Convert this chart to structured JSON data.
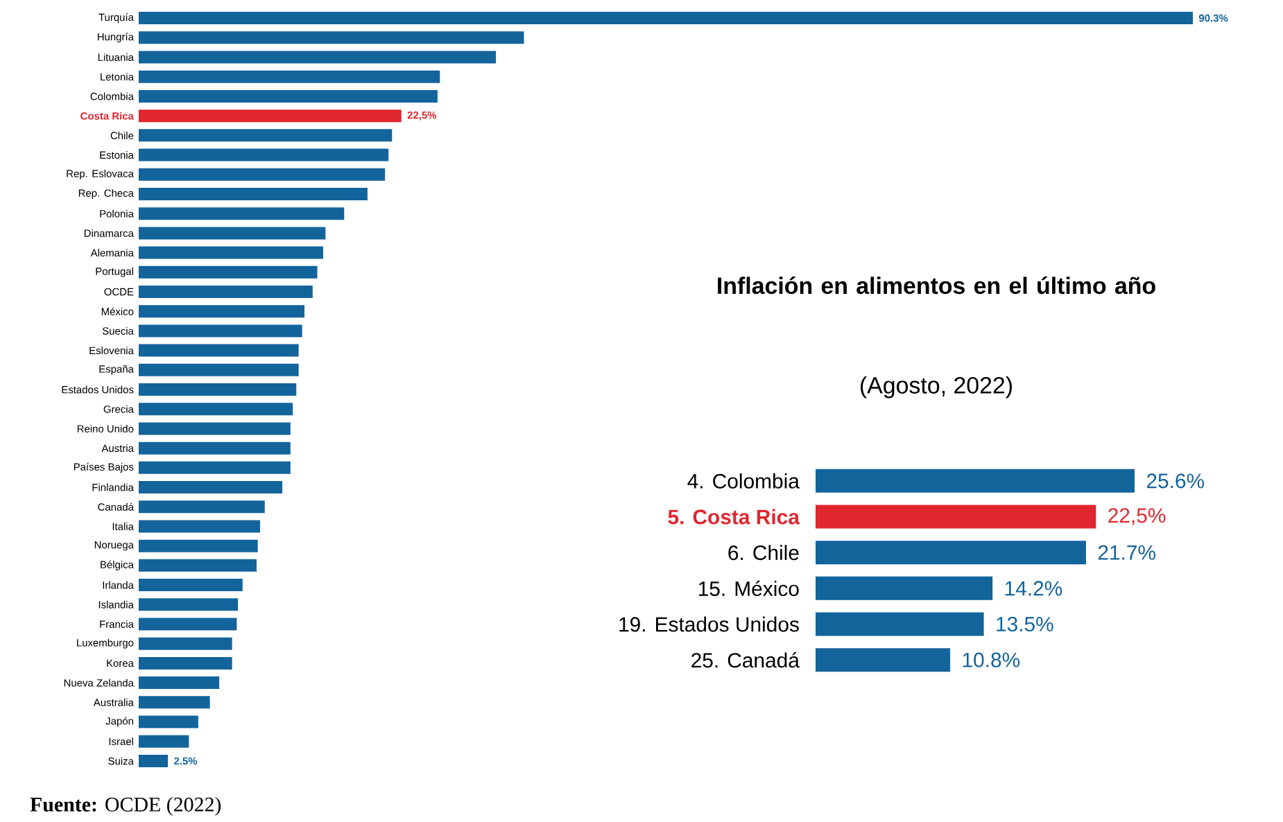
{
  "chart_data": [
    {
      "type": "bar",
      "orientation": "horizontal",
      "categories": [
        "Turquía",
        "Hungría",
        "Lituania",
        "Letonia",
        "Colombia",
        "Costa Rica",
        "Chile",
        "Estonia",
        "Rep. Eslovaca",
        "Rep. Checa",
        "Polonia",
        "Dinamarca",
        "Alemania",
        "Portugal",
        "OCDE",
        "México",
        "Suecia",
        "Eslovenia",
        "España",
        "Estados Unidos",
        "Grecia",
        "Reino Unido",
        "Austria",
        "Países Bajos",
        "Finlandia",
        "Canadá",
        "Italia",
        "Noruega",
        "Bélgica",
        "Irlanda",
        "Islandia",
        "Francia",
        "Luxemburgo",
        "Korea",
        "Nueva Zelanda",
        "Australia",
        "Japón",
        "Israel",
        "Suiza"
      ],
      "values": [
        90.3,
        33.0,
        30.6,
        25.8,
        25.6,
        22.5,
        21.7,
        21.4,
        21.1,
        19.6,
        17.6,
        16.0,
        15.8,
        15.3,
        14.9,
        14.2,
        14.0,
        13.7,
        13.7,
        13.5,
        13.2,
        13.0,
        13.0,
        13.0,
        12.3,
        10.8,
        10.4,
        10.2,
        10.1,
        8.9,
        8.5,
        8.4,
        8.0,
        8.0,
        6.9,
        6.1,
        5.1,
        4.3,
        2.5
      ],
      "value_labels": [
        "90.3%",
        null,
        null,
        null,
        null,
        "22,5%",
        null,
        null,
        null,
        null,
        null,
        null,
        null,
        null,
        null,
        null,
        null,
        null,
        null,
        null,
        null,
        null,
        null,
        null,
        null,
        null,
        null,
        null,
        null,
        null,
        null,
        null,
        null,
        null,
        null,
        null,
        null,
        null,
        "2.5%"
      ],
      "colors": [
        "#14649c",
        "#14649c",
        "#14649c",
        "#14649c",
        "#14649c",
        "#e0262f",
        "#14649c",
        "#14649c",
        "#14649c",
        "#14649c",
        "#14649c",
        "#14649c",
        "#14649c",
        "#14649c",
        "#14649c",
        "#14649c",
        "#14649c",
        "#14649c",
        "#14649c",
        "#14649c",
        "#14649c",
        "#14649c",
        "#14649c",
        "#14649c",
        "#14649c",
        "#14649c",
        "#14649c",
        "#14649c",
        "#14649c",
        "#14649c",
        "#14649c",
        "#14649c",
        "#14649c",
        "#14649c",
        "#14649c",
        "#14649c",
        "#14649c",
        "#14649c",
        "#14649c"
      ],
      "annotations": [
        "**Fuente:** OCDE (2022)"
      ]
    },
    {
      "type": "bar",
      "orientation": "horizontal",
      "title": "Inflación en alimentos en el último año",
      "subtitle": "(Agosto, 2022)",
      "categories": [
        "4. Colombia",
        "5. Costa Rica",
        "6. Chile",
        "15. México",
        "19. Estados Unidos",
        "25. Canadá"
      ],
      "values": [
        25.6,
        22.5,
        21.7,
        14.2,
        13.5,
        10.8
      ],
      "value_labels": [
        "25.6%",
        "22,5%",
        "21.7%",
        "14.2%",
        "13.5%",
        "10.8%"
      ],
      "colors": [
        "#14649c",
        "#e0262f",
        "#14649c",
        "#14649c",
        "#14649c",
        "#14649c"
      ]
    }
  ]
}
